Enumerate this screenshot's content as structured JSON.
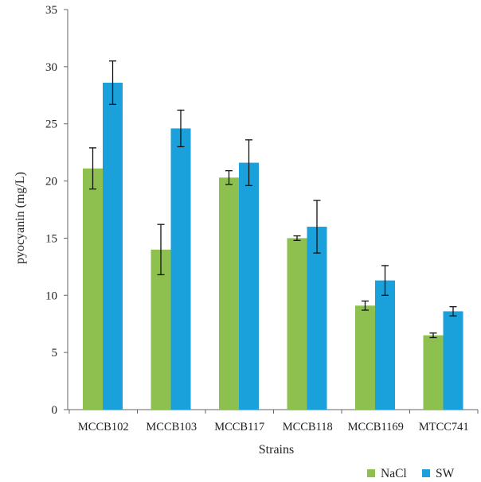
{
  "chart_data": {
    "type": "bar",
    "xlabel": "Strains",
    "ylabel": "pyocyanin (mg/L)",
    "ylim": [
      0,
      35
    ],
    "yticks": [
      "0",
      "5",
      "10",
      "15",
      "20",
      "25",
      "30",
      "35"
    ],
    "categories": [
      "MCCB102",
      "MCCB103",
      "MCCB117",
      "MCCB118",
      "MCCB1169",
      "MTCC741"
    ],
    "series": [
      {
        "name": "NaCl",
        "color": "#8DC04F",
        "values": [
          21.1,
          14.0,
          20.3,
          15.0,
          9.1,
          6.5
        ],
        "errors": [
          1.8,
          2.2,
          0.6,
          0.2,
          0.4,
          0.2
        ]
      },
      {
        "name": "SW",
        "color": "#1AA0DB",
        "values": [
          28.6,
          24.6,
          21.6,
          16.0,
          11.3,
          8.6
        ],
        "errors": [
          1.9,
          1.6,
          2.0,
          2.3,
          1.3,
          0.4
        ]
      }
    ],
    "grid": false,
    "legend_position": "bottom-right"
  }
}
